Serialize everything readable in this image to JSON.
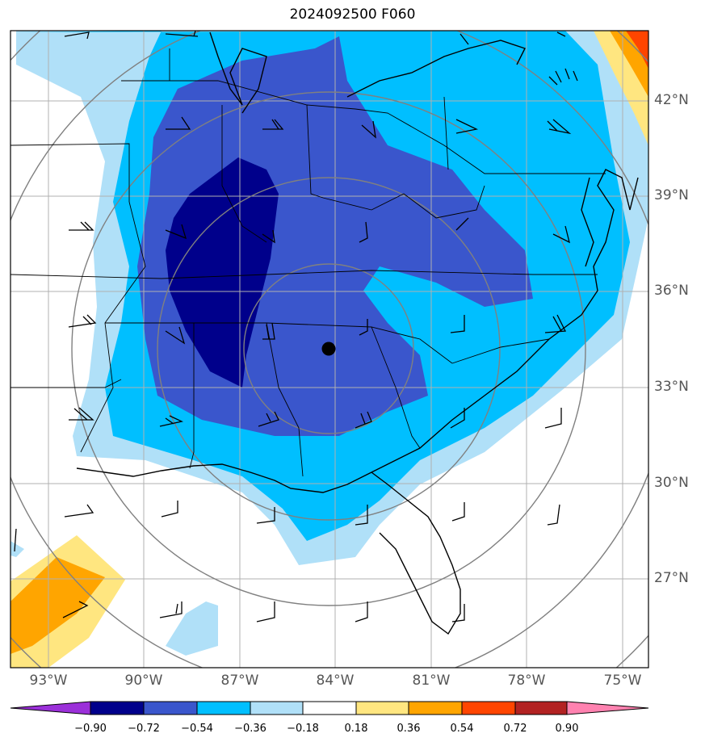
{
  "title": "2024092500 F060",
  "lat_labels": [
    "42°N",
    "39°N",
    "36°N",
    "33°N",
    "30°N",
    "27°N"
  ],
  "lon_labels": [
    "93°W",
    "90°W",
    "87°W",
    "84°W",
    "81°W",
    "78°W",
    "75°W"
  ],
  "colorbar": {
    "ticks": [
      "−0.90",
      "−0.72",
      "−0.54",
      "−0.36",
      "−0.18",
      "0.18",
      "0.36",
      "0.54",
      "0.72",
      "0.90"
    ],
    "colors": [
      "#9b30d9",
      "#00008b",
      "#3a56cc",
      "#00bfff",
      "#b0e0f8",
      "#ffffff",
      "#ffe680",
      "#ffa500",
      "#ff4500",
      "#b22222",
      "#ff82b0"
    ]
  },
  "marker": "storm-center"
}
